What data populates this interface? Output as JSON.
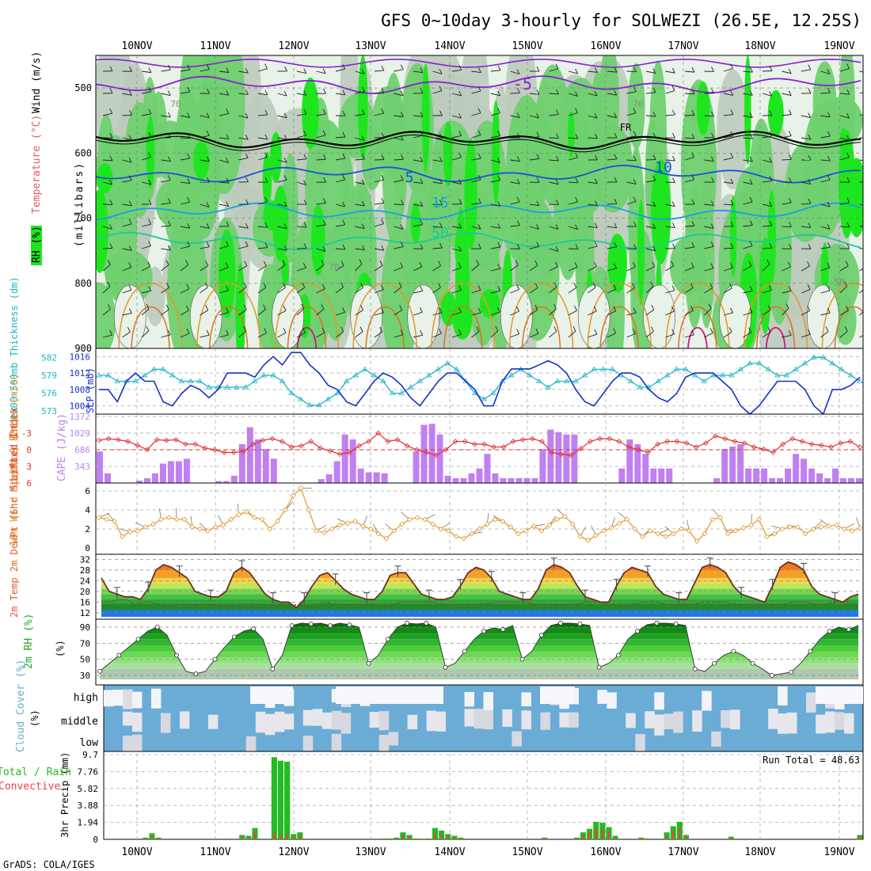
{
  "title": "GFS 0~10day 3-hourly for SOLWEZI (26.5E, 12.25S)",
  "footer": "GrADS: COLA/IGES",
  "dates": [
    "10NOV",
    "11NOV",
    "12NOV",
    "13NOV",
    "14NOV",
    "15NOV",
    "16NOV",
    "17NOV",
    "18NOV",
    "19NOV"
  ],
  "colors": {
    "rh_light": "#e8f2e8",
    "rh_mid": "#bccbbc",
    "rh_green": "#6fd06f",
    "rh_bright": "#1ee61e",
    "purple": "#8a1fd0",
    "black": "#000000",
    "blue_dark": "#1a50d8",
    "blue_light": "#199fe6",
    "teal": "#1ec896",
    "orange": "#e69628",
    "magenta": "#d2147d",
    "slp": "#1432c8",
    "thickness": "#1eb4c8",
    "cape": "#c080f0",
    "li": "#e03030",
    "wind": "#e6962a",
    "cloud": "#6aacd6",
    "rain": "#22bb22",
    "conv": "#e64444"
  },
  "chart_data": [
    {
      "type": "heatmap",
      "name": "upper-air",
      "ylabel": "(millibars)",
      "side_labels": [
        "RH (%)",
        "Temperature (°C)",
        "Wind (m/s)"
      ],
      "ylim": [
        900,
        450
      ],
      "yticks": [
        500,
        600,
        700,
        800,
        900
      ],
      "contour_labels": [
        "-5",
        "FR",
        "5",
        "10",
        "15",
        "50",
        "70",
        "70",
        "70",
        "50"
      ],
      "isotherms": [
        {
          "name": "-5",
          "level_mb": 495
        },
        {
          "name": "FR",
          "level_mb": 580
        },
        {
          "name": "5",
          "level_mb": 632
        },
        {
          "name": "10",
          "level_mb": 690
        },
        {
          "name": "15",
          "level_mb": 735
        }
      ]
    },
    {
      "type": "line",
      "name": "slp-thickness",
      "ylabel_left": "1000-500mb Thickness (dm)",
      "ylabel_right": "SLP (mb)",
      "yticks_left": [
        573,
        576,
        579,
        582
      ],
      "yticks_right": [
        1004,
        1008,
        1012,
        1016
      ],
      "slp": [
        1008,
        1008,
        1005,
        1010,
        1012,
        1010,
        1010,
        1005,
        1004,
        1007,
        1009,
        1008,
        1006,
        1008,
        1012,
        1012,
        1012,
        1011,
        1014,
        1016,
        1014,
        1017,
        1017,
        1014,
        1012,
        1009,
        1008,
        1005,
        1004,
        1007,
        1010,
        1012,
        1011,
        1009,
        1006,
        1004,
        1007,
        1010,
        1012,
        1012,
        1010,
        1008,
        1004,
        1004,
        1010,
        1013,
        1013,
        1013,
        1014,
        1015,
        1014,
        1012,
        1008,
        1005,
        1004,
        1007,
        1010,
        1012,
        1012,
        1011,
        1008,
        1006,
        1005,
        1007,
        1011,
        1012,
        1012,
        1012,
        1010,
        1008,
        1004,
        1002,
        1004,
        1007,
        1010,
        1010,
        1010,
        1008,
        1004,
        1002,
        1008,
        1008,
        1009,
        1011
      ],
      "thickness": [
        579,
        579,
        578,
        578,
        578,
        579,
        580,
        580,
        579,
        578,
        578,
        578,
        577,
        577,
        577,
        577,
        577,
        578,
        579,
        579,
        578,
        576,
        575,
        574,
        574,
        575,
        576,
        578,
        579,
        580,
        579,
        578,
        576,
        576,
        577,
        578,
        579,
        580,
        581,
        580,
        578,
        576,
        575,
        576,
        578,
        579,
        580,
        579,
        578,
        577,
        578,
        578,
        578,
        579,
        580,
        580,
        580,
        579,
        578,
        577,
        577,
        578,
        579,
        580,
        580,
        579,
        578,
        579,
        579,
        579,
        580,
        581,
        581,
        580,
        579,
        579,
        580,
        581,
        582,
        582,
        581,
        580,
        579,
        578
      ]
    },
    {
      "type": "bar",
      "name": "cape-li",
      "ylabel_left": "Lifted Index",
      "ylabel_right": "CAPE (J/kg)",
      "yticks_left": [
        -3,
        0,
        3,
        6
      ],
      "yticks_right": [
        343,
        686,
        1029,
        1372
      ],
      "cape": [
        650,
        200,
        0,
        0,
        0,
        50,
        100,
        200,
        400,
        450,
        450,
        500,
        0,
        0,
        0,
        40,
        40,
        150,
        800,
        1150,
        900,
        700,
        500,
        0,
        0,
        0,
        0,
        0,
        80,
        180,
        450,
        1000,
        900,
        300,
        220,
        220,
        200,
        0,
        0,
        0,
        650,
        1200,
        1220,
        1000,
        150,
        100,
        100,
        200,
        300,
        600,
        200,
        100,
        100,
        100,
        100,
        100,
        700,
        1100,
        1050,
        1000,
        1000,
        0,
        0,
        0,
        0,
        0,
        300,
        900,
        800,
        600,
        300,
        300,
        300,
        0,
        0,
        0,
        0,
        0,
        100,
        700,
        750,
        800,
        300,
        300,
        300,
        100,
        100,
        300,
        600,
        500,
        300,
        200,
        100,
        300,
        100,
        100,
        100
      ],
      "li": [
        -1.7,
        -2.0,
        -1.8,
        -1.5,
        -0.8,
        0.0,
        -1.8,
        -1.7,
        -1.8,
        -1.0,
        -1.0,
        -0.3,
        0.0,
        0.5,
        0.5,
        0.3,
        -1.0,
        -1.7,
        -2.0,
        -1.5,
        -0.5,
        -0.7,
        -1.5,
        -0.3,
        0.2,
        0.8,
        0.5,
        -0.7,
        -1.5,
        -3.0,
        -1.5,
        -1.8,
        -0.7,
        0.0,
        0.5,
        1.0,
        0.0,
        -1.5,
        -1.5,
        -1.0,
        -1.0,
        -0.5,
        -0.5,
        -1.5,
        -1.8,
        -2.0,
        -1.5,
        0.5,
        0.8,
        1.0,
        -0.2,
        -1.5,
        -2.0,
        -2.0,
        -1.5,
        -0.5,
        0.0,
        0.5,
        -1.0,
        -1.5,
        -1.5,
        -1.2,
        -0.5,
        -1.2,
        -2.5,
        -2.0,
        -1.5,
        -1.2,
        -0.5,
        -0.1,
        0.5,
        -1.0,
        -2.0,
        -1.5,
        -1.0,
        -0.8,
        -0.5,
        -1.2,
        -1.5,
        -0.5
      ]
    },
    {
      "type": "line",
      "name": "wind10m",
      "ylabel": "10m Wind Speed & Barbs (m/s)",
      "yticks": [
        0,
        2,
        4,
        6
      ],
      "values": [
        3.2,
        3.0,
        2.8,
        1.2,
        1.7,
        1.8,
        2.2,
        2.5,
        3.0,
        3.2,
        3.0,
        3.0,
        2.2,
        2.0,
        1.8,
        2.2,
        2.4,
        3.0,
        3.5,
        3.8,
        3.2,
        3.0,
        2.0,
        2.8,
        4.0,
        5.5,
        6.3,
        4.0,
        1.8,
        1.6,
        2.0,
        2.4,
        2.6,
        2.8,
        2.3,
        2.0,
        1.5,
        1.0,
        1.8,
        2.5,
        3.0,
        3.2,
        3.0,
        2.5,
        2.0,
        1.8,
        1.2,
        1.0,
        1.5,
        2.0,
        2.5,
        3.0,
        2.8,
        2.2,
        1.5,
        1.8,
        2.3,
        1.8,
        2.4,
        3.0,
        3.3,
        2.5,
        1.2,
        0.8,
        1.3,
        1.8,
        2.1,
        2.6,
        3.0,
        2.0,
        1.2,
        1.8,
        1.5,
        1.2,
        1.5,
        2.0,
        1.8,
        0.7,
        1.5,
        3.0,
        3.2,
        1.5,
        1.8,
        2.1,
        2.4,
        3.0,
        1.2,
        1.5,
        2.0,
        2.2,
        2.2,
        1.5,
        2.0,
        2.2,
        2.3,
        2.4,
        2.0,
        1.8,
        2.1
      ]
    },
    {
      "type": "area",
      "name": "temp2m",
      "ylabel": "2m Temp 2m DewPt (6hr Min/Max) (°C)",
      "yticks": [
        12,
        16,
        20,
        24,
        28,
        32
      ],
      "temp": [
        25,
        20,
        19,
        18,
        18,
        17,
        21,
        28,
        30,
        29,
        27,
        25,
        20,
        19,
        18,
        18,
        20,
        27,
        29,
        27,
        23,
        19,
        17,
        16,
        16,
        14,
        17,
        22,
        26,
        27,
        24,
        21,
        19,
        18,
        17,
        17,
        20,
        26,
        27,
        27,
        23,
        19,
        18,
        17,
        17,
        18,
        22,
        27,
        29,
        28,
        25,
        20,
        19,
        18,
        17,
        17,
        21,
        28,
        30,
        29,
        27,
        22,
        18,
        17,
        16,
        16,
        22,
        27,
        29,
        28,
        27,
        22,
        19,
        18,
        17,
        17,
        23,
        29,
        30,
        29,
        27,
        22,
        19,
        18,
        17,
        16,
        22,
        29,
        31,
        30,
        28,
        22,
        19,
        18,
        17,
        16,
        18,
        19
      ],
      "dewpt": [
        16,
        16,
        17,
        17,
        15,
        16,
        16,
        15,
        14,
        15,
        15,
        15,
        15,
        15,
        15,
        14,
        15,
        14,
        14,
        15,
        15,
        14,
        15,
        15,
        15,
        14,
        15,
        16,
        15,
        15,
        15,
        15,
        15,
        15,
        14,
        15,
        16,
        16,
        16,
        16,
        16,
        15,
        15,
        15,
        15,
        15,
        15,
        16,
        16,
        16,
        16,
        16,
        15,
        15,
        15,
        15,
        15,
        15,
        16,
        16,
        16,
        15,
        15,
        14,
        15,
        16,
        16,
        16,
        15,
        15,
        15,
        15,
        16,
        16,
        16,
        16,
        15,
        15,
        15,
        15,
        15,
        15,
        15,
        16,
        16,
        16,
        15,
        15,
        16,
        16,
        16,
        15
      ]
    },
    {
      "type": "area",
      "name": "rh2m",
      "ylabel": "2m RH (%)",
      "yticks": [
        30,
        50,
        70,
        90
      ],
      "values": [
        35,
        45,
        55,
        65,
        75,
        85,
        90,
        80,
        55,
        35,
        32,
        35,
        50,
        65,
        78,
        85,
        88,
        75,
        38,
        55,
        92,
        95,
        94,
        95,
        92,
        95,
        93,
        90,
        45,
        55,
        75,
        90,
        95,
        94,
        95,
        90,
        40,
        45,
        60,
        75,
        85,
        89,
        87,
        92,
        50,
        60,
        80,
        92,
        95,
        95,
        94,
        92,
        40,
        45,
        55,
        75,
        85,
        93,
        95,
        95,
        94,
        92,
        38,
        35,
        45,
        55,
        60,
        55,
        45,
        38,
        30,
        32,
        34,
        45,
        60,
        75,
        85,
        90,
        87,
        92
      ]
    },
    {
      "type": "heatmap",
      "name": "cloud-cover",
      "ylabel": "Cloud Cover (%)",
      "rows": [
        "high",
        "middle",
        "low"
      ]
    },
    {
      "type": "bar",
      "name": "precip",
      "ylabel": "3hr Precip (mm)",
      "side_labels": [
        "Total / Rain",
        "Convective"
      ],
      "yticks": [
        0,
        1.94,
        3.88,
        5.82,
        7.76,
        9.7
      ],
      "annotation": "Run Total = 48.63",
      "total": [
        0,
        0,
        0,
        0,
        0,
        0,
        0.2,
        0.7,
        0.2,
        0,
        0,
        0,
        0,
        0,
        0,
        0,
        0,
        0,
        0,
        0,
        0,
        0.5,
        0.4,
        1.3,
        0,
        0,
        9.4,
        9.0,
        8.9,
        0.6,
        0.8,
        0,
        0,
        0,
        0,
        0,
        0,
        0,
        0,
        0,
        0,
        0,
        0,
        0.1,
        0.1,
        0.2,
        0.8,
        0.5,
        0.1,
        0,
        0.1,
        1.3,
        1.0,
        0.6,
        0.4,
        0.2,
        0,
        0,
        0,
        0,
        0,
        0,
        0,
        0,
        0,
        0,
        0,
        0,
        0.2,
        0,
        0,
        0,
        0,
        0.2,
        0.8,
        1.2,
        2.0,
        1.9,
        1.4,
        0.4,
        0,
        0,
        0,
        0.2,
        0.1,
        0,
        0,
        0.8,
        1.5,
        2.0,
        0.5,
        0,
        0,
        0,
        0,
        0,
        0,
        0.3,
        0,
        0,
        0,
        0,
        0,
        0,
        0,
        0,
        0,
        0,
        0,
        0,
        0,
        0,
        0,
        0,
        0,
        0,
        0,
        0.5
      ],
      "convective": [
        0,
        0,
        0,
        0,
        0,
        0,
        0.1,
        0.4,
        0.1,
        0,
        0,
        0,
        0,
        0,
        0,
        0,
        0,
        0,
        0,
        0,
        0,
        0.3,
        0.2,
        0.7,
        0,
        0,
        0.8,
        0.5,
        0.5,
        0.3,
        0.4,
        0,
        0,
        0,
        0,
        0,
        0,
        0,
        0,
        0,
        0,
        0,
        0,
        0.1,
        0.1,
        0.1,
        0.5,
        0.3,
        0.1,
        0,
        0.1,
        0.7,
        0.5,
        0.4,
        0.2,
        0.1,
        0,
        0,
        0,
        0,
        0,
        0,
        0,
        0,
        0,
        0,
        0,
        0,
        0.1,
        0,
        0,
        0,
        0,
        0.1,
        0.5,
        0.8,
        1.3,
        1.2,
        0.9,
        0.2,
        0,
        0,
        0,
        0.1,
        0.1,
        0,
        0,
        0.5,
        1.0,
        1.3,
        0.3,
        0,
        0,
        0,
        0,
        0,
        0,
        0.2,
        0,
        0,
        0,
        0,
        0,
        0,
        0,
        0,
        0,
        0,
        0,
        0,
        0,
        0,
        0,
        0,
        0,
        0,
        0,
        0.3
      ]
    }
  ]
}
